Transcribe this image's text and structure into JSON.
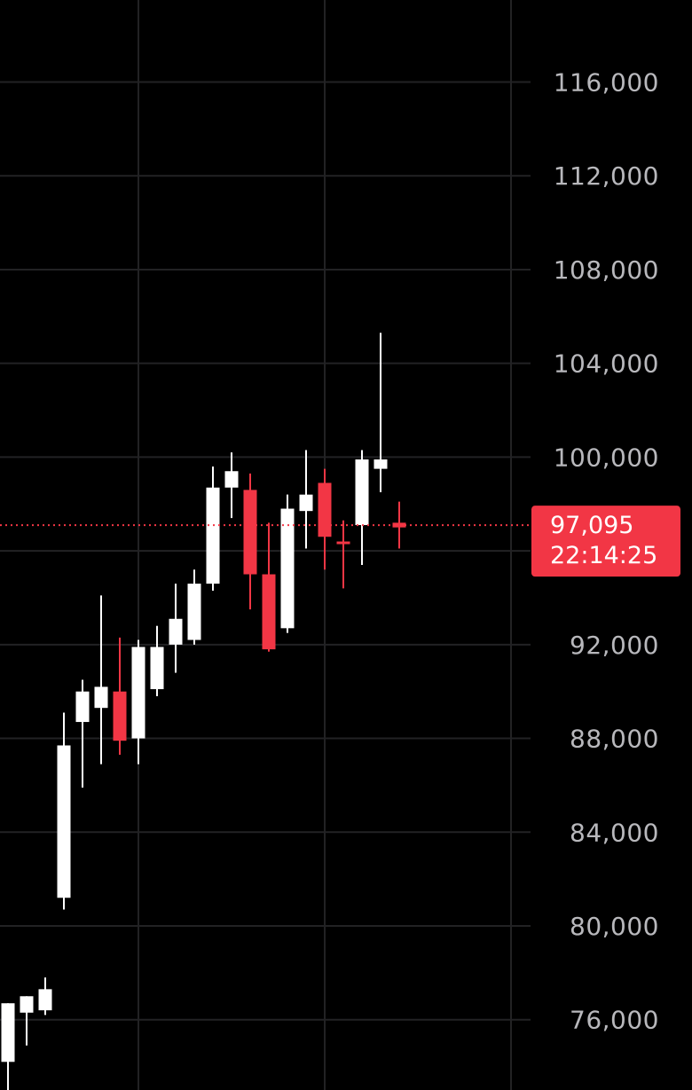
{
  "chart_data": {
    "type": "candlestick",
    "ylim": [
      73000,
      119500
    ],
    "y_ticks": [
      76000,
      80000,
      84000,
      88000,
      92000,
      100000,
      104000,
      108000,
      112000,
      116000
    ],
    "y_tick_labels": [
      "76,000",
      "80,000",
      "84,000",
      "88,000",
      "92,000",
      "100,000",
      "104,000",
      "108,000",
      "112,000",
      "116,000"
    ],
    "candles": [
      {
        "o": 74200,
        "h": 76700,
        "l": 72500,
        "c": 76700
      },
      {
        "o": 76300,
        "h": 77000,
        "l": 74900,
        "c": 77000
      },
      {
        "o": 76400,
        "h": 77800,
        "l": 76200,
        "c": 77300
      },
      {
        "o": 81200,
        "h": 89100,
        "l": 80700,
        "c": 87700
      },
      {
        "o": 88700,
        "h": 90500,
        "l": 85900,
        "c": 90000
      },
      {
        "o": 89300,
        "h": 94100,
        "l": 86900,
        "c": 90200
      },
      {
        "o": 90000,
        "h": 92300,
        "l": 87300,
        "c": 87900
      },
      {
        "o": 88000,
        "h": 92200,
        "l": 86900,
        "c": 91900
      },
      {
        "o": 90100,
        "h": 92800,
        "l": 89800,
        "c": 91900
      },
      {
        "o": 92000,
        "h": 94600,
        "l": 90800,
        "c": 93100
      },
      {
        "o": 92200,
        "h": 95200,
        "l": 92000,
        "c": 94600
      },
      {
        "o": 94600,
        "h": 99600,
        "l": 94300,
        "c": 98700
      },
      {
        "o": 98700,
        "h": 100200,
        "l": 97400,
        "c": 99400
      },
      {
        "o": 98600,
        "h": 99300,
        "l": 93500,
        "c": 95000
      },
      {
        "o": 95000,
        "h": 97200,
        "l": 91700,
        "c": 91800
      },
      {
        "o": 92700,
        "h": 98400,
        "l": 92500,
        "c": 97800
      },
      {
        "o": 97700,
        "h": 100300,
        "l": 96100,
        "c": 98400
      },
      {
        "o": 98900,
        "h": 99500,
        "l": 95200,
        "c": 96600
      },
      {
        "o": 96400,
        "h": 97300,
        "l": 94400,
        "c": 96300
      },
      {
        "o": 97100,
        "h": 100300,
        "l": 95400,
        "c": 99900
      },
      {
        "o": 99500,
        "h": 105300,
        "l": 98500,
        "c": 99900
      },
      {
        "o": 97200,
        "h": 98100,
        "l": 96100,
        "c": 97000
      }
    ],
    "current_price": 97095,
    "current_price_label": "97,095",
    "countdown_label": "22:14:25",
    "grid": true
  },
  "colors": {
    "background": "#000000",
    "up": "#ffffff",
    "down": "#f23645",
    "grid": "#222224",
    "axis_text": "#b8b8bc",
    "price_label_bg": "#f23645",
    "price_line": "#f23645"
  }
}
